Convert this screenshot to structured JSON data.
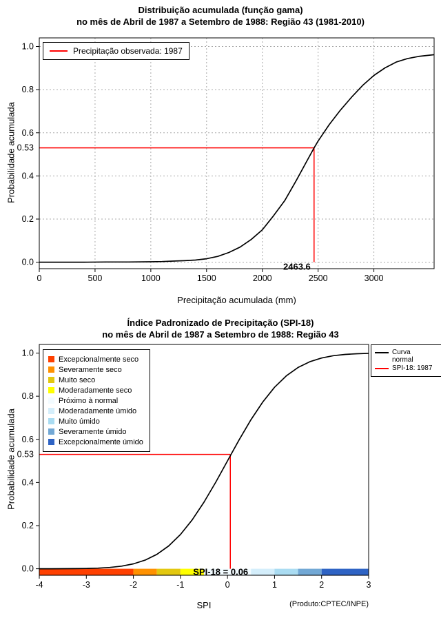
{
  "page": {
    "background": "#ffffff",
    "accent_red": "#ff0000"
  },
  "chart_data": [
    {
      "type": "line",
      "title": "Distribuição acumulada (função gama)",
      "subtitle": "no mês de Abril de 1987 a Setembro de 1988: Região 43 (1981-2010)",
      "xlabel": "Precipitação acumulada (mm)",
      "ylabel": "Probabilidade acumulada",
      "xlim": [
        0,
        3540
      ],
      "ylim": [
        -0.03,
        1.04
      ],
      "xticks": [
        0,
        500,
        1000,
        1500,
        2000,
        2500,
        3000
      ],
      "yticks": [
        0,
        0.2,
        0.4,
        0.6,
        0.8,
        1
      ],
      "grid": true,
      "legend_position": "top-left",
      "legend": [
        {
          "label": "Precipitação observada: 1987",
          "color": "#ff0000"
        }
      ],
      "series": [
        {
          "name": "Distribuição gama acumulada",
          "color": "#000000",
          "x": [
            0,
            200,
            400,
            600,
            800,
            1000,
            1100,
            1200,
            1300,
            1400,
            1500,
            1600,
            1700,
            1800,
            1900,
            2000,
            2100,
            2200,
            2300,
            2400,
            2463.6,
            2500,
            2600,
            2700,
            2800,
            2900,
            3000,
            3100,
            3200,
            3300,
            3400,
            3540
          ],
          "y": [
            0,
            0,
            0,
            0.001,
            0.001,
            0.002,
            0.003,
            0.005,
            0.007,
            0.01,
            0.016,
            0.027,
            0.045,
            0.07,
            0.105,
            0.15,
            0.215,
            0.285,
            0.375,
            0.47,
            0.53,
            0.562,
            0.638,
            0.705,
            0.765,
            0.82,
            0.866,
            0.901,
            0.928,
            0.944,
            0.954,
            0.962
          ]
        }
      ],
      "marker": {
        "x": 2463.6,
        "y": 0.53,
        "x_label": "2463.6",
        "y_label": "0.53",
        "color": "#ff0000"
      }
    },
    {
      "type": "line",
      "title": "Índice Padronizado de Precipitação (SPI-18)",
      "subtitle": "no mês de Abril de 1987 a Setembro de 1988: Região 43",
      "xlabel": "SPI",
      "ylabel": "Probabilidade acumulada",
      "xlim": [
        -4,
        3
      ],
      "ylim": [
        -0.03,
        1.04
      ],
      "xticks": [
        -4,
        -3,
        -2,
        -1,
        0,
        1,
        2,
        3
      ],
      "yticks": [
        0,
        0.2,
        0.4,
        0.6,
        0.8,
        1
      ],
      "grid": false,
      "legend_right": [
        {
          "label": "Curva normal",
          "color": "#000000"
        },
        {
          "label": "SPI-18: 1987",
          "color": "#ff0000"
        }
      ],
      "categories": [
        {
          "label": "Excepcionalmente seco",
          "color": "#ff4000"
        },
        {
          "label": "Severamente seco",
          "color": "#ff9100"
        },
        {
          "label": "Muito seco",
          "color": "#e3c810"
        },
        {
          "label": "Moderadamente seco",
          "color": "#ffff00"
        },
        {
          "label": "Próximo à normal",
          "color": "#f2fbff"
        },
        {
          "label": "Moderadamente úmido",
          "color": "#d4eefb"
        },
        {
          "label": "Muito úmido",
          "color": "#aadcf2"
        },
        {
          "label": "Severamente úmido",
          "color": "#72a8d5"
        },
        {
          "label": "Excepcionalmente úmido",
          "color": "#2e63c4"
        }
      ],
      "colorbar": [
        {
          "from": -4,
          "to": -2,
          "color": "#ff4000"
        },
        {
          "from": -2,
          "to": -1.5,
          "color": "#ff9100"
        },
        {
          "from": -1.5,
          "to": -1,
          "color": "#e3c810"
        },
        {
          "from": -1,
          "to": -0.5,
          "color": "#ffff00"
        },
        {
          "from": -0.5,
          "to": 0.5,
          "color": "#f2fbff"
        },
        {
          "from": 0.5,
          "to": 1,
          "color": "#d4eefb"
        },
        {
          "from": 1,
          "to": 1.5,
          "color": "#aadcf2"
        },
        {
          "from": 1.5,
          "to": 2,
          "color": "#72a8d5"
        },
        {
          "from": 2,
          "to": 3,
          "color": "#2e63c4"
        }
      ],
      "series": [
        {
          "name": "Curva normal",
          "color": "#000000",
          "x": [
            -4,
            -3.75,
            -3.5,
            -3.25,
            -3,
            -2.75,
            -2.5,
            -2.25,
            -2,
            -1.75,
            -1.5,
            -1.25,
            -1,
            -0.75,
            -0.5,
            -0.25,
            0,
            0.06,
            0.25,
            0.5,
            0.75,
            1,
            1.25,
            1.5,
            1.75,
            2,
            2.25,
            2.5,
            2.75,
            3
          ],
          "y": [
            3e-05,
            0.0001,
            0.0002,
            0.0006,
            0.0013,
            0.003,
            0.0062,
            0.0122,
            0.0228,
            0.0401,
            0.0668,
            0.1056,
            0.1587,
            0.2266,
            0.3085,
            0.4013,
            0.5,
            0.524,
            0.5987,
            0.6915,
            0.7734,
            0.8413,
            0.8944,
            0.9332,
            0.9599,
            0.9772,
            0.9878,
            0.9938,
            0.997,
            0.9987
          ]
        }
      ],
      "marker": {
        "x": 0.06,
        "y": 0.53,
        "x_label": "SPI-18 = 0.06",
        "y_label": "0.53",
        "color": "#ff0000"
      },
      "footnote": "(Produto:CPTEC/INPE)"
    }
  ]
}
